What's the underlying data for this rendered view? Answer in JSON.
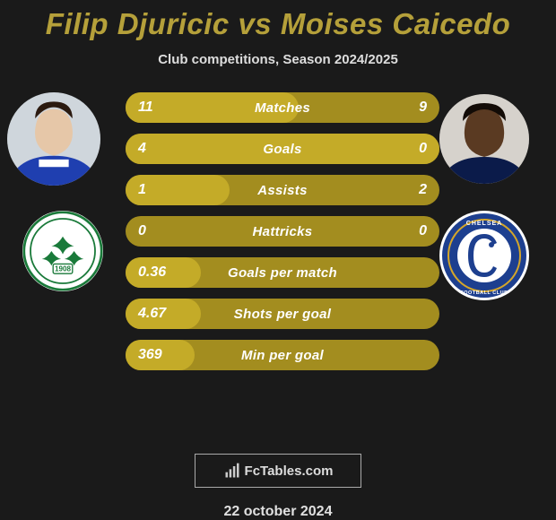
{
  "title_color": "#b5a03a",
  "title": "Filip Djuricic vs Moises Caicedo",
  "subtitle": "Club competitions, Season 2024/2025",
  "bar_bg": "#a38d1f",
  "bar_fill": "#c4ab28",
  "rows": [
    {
      "left": "11",
      "label": "Matches",
      "right": "9",
      "fill_pct": 55
    },
    {
      "left": "4",
      "label": "Goals",
      "right": "0",
      "fill_pct": 100
    },
    {
      "left": "1",
      "label": "Assists",
      "right": "2",
      "fill_pct": 33
    },
    {
      "left": "0",
      "label": "Hattricks",
      "right": "0",
      "fill_pct": 0
    },
    {
      "left": "0.36",
      "label": "Goals per match",
      "right": "",
      "fill_pct": 24,
      "noright": true
    },
    {
      "left": "4.67",
      "label": "Shots per goal",
      "right": "",
      "fill_pct": 24,
      "noright": true
    },
    {
      "left": "369",
      "label": "Min per goal",
      "right": "",
      "fill_pct": 22,
      "noright": true
    }
  ],
  "logo_text": "FcTables.com",
  "date": "22 october 2024",
  "club1": {
    "name": "Panathinaikos",
    "year": "1908",
    "green": "#1a7a3a"
  },
  "club2": {
    "name": "Chelsea",
    "blue": "#1d3f8f",
    "gold": "#d4a62a"
  }
}
